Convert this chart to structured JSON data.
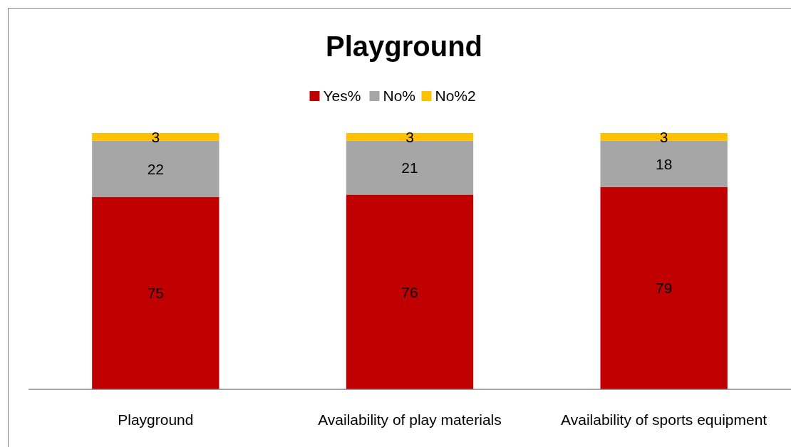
{
  "chart_data": {
    "type": "bar",
    "title": "Playground",
    "categories": [
      "Playground",
      "Availability of play materials",
      "Availability of sports equipment"
    ],
    "stacked": true,
    "data_labels": true,
    "legend": "top",
    "tick_labels": "x",
    "ylim": [
      0,
      100
    ],
    "series": [
      {
        "name": "Yes%",
        "color": "#c00000",
        "values": [
          75,
          76,
          79
        ]
      },
      {
        "name": "No%",
        "color": "#a6a6a6",
        "values": [
          22,
          21,
          18
        ]
      },
      {
        "name": "No%2",
        "color": "#ffc000",
        "values": [
          3,
          3,
          3
        ]
      }
    ]
  }
}
